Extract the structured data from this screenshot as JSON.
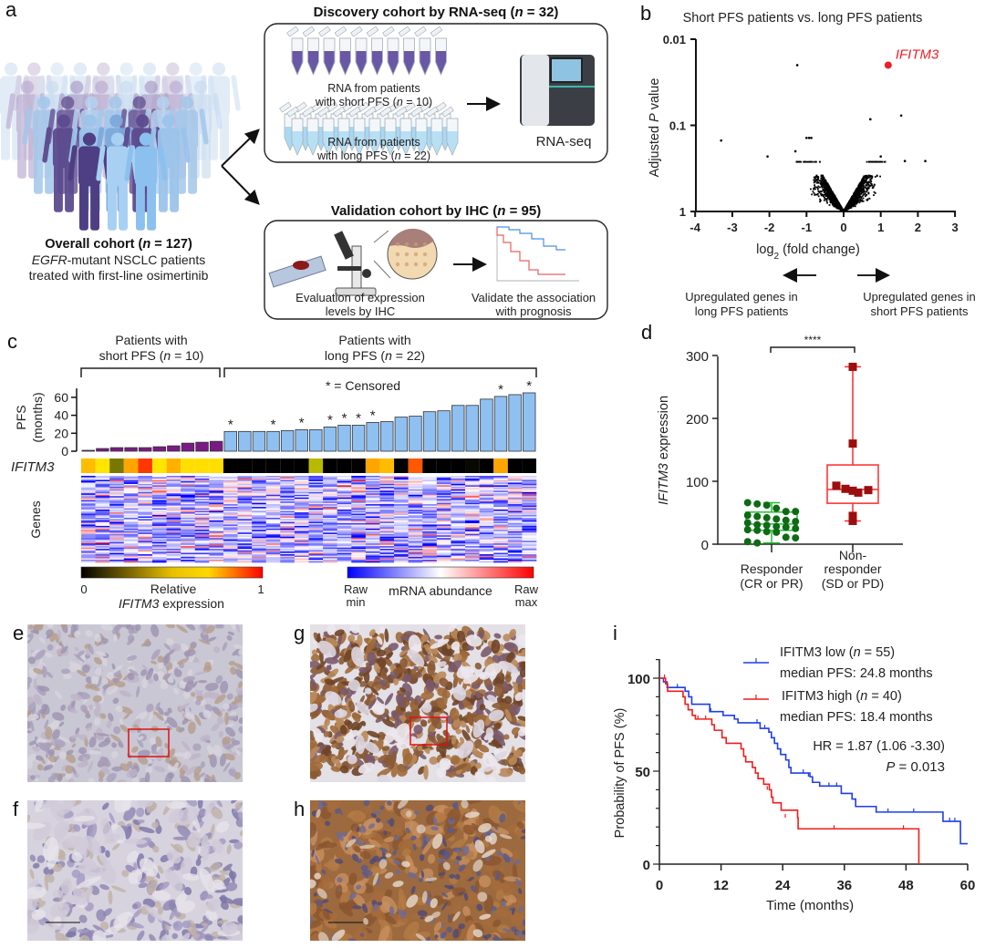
{
  "panel_labels": {
    "a": "a",
    "b": "b",
    "c": "c",
    "d": "d",
    "e": "e",
    "f": "f",
    "g": "g",
    "h": "h",
    "i": "i"
  },
  "colors": {
    "purple": "#7b1a86",
    "bar_blue": "#8fc0f2",
    "red": "#e8202a",
    "blue": "#1f3ee0",
    "green": "#1a9a2a",
    "dark_green": "#0e6a14",
    "dark_red": "#9c0e0e"
  },
  "a": {
    "discovery_title": [
      "Discovery cohort by RNA-seq (",
      "n",
      " = 32)"
    ],
    "short_line1": "RNA from patients",
    "short_line2": [
      "with short PFS (",
      "n",
      " = 10)"
    ],
    "long_line1": "RNA from patients",
    "long_line2": [
      "with long PFS (",
      "n",
      " = 22)"
    ],
    "rnaseq": "RNA-seq",
    "validation_title": [
      "Validation cohort by IHC (",
      "n",
      " = 95)"
    ],
    "eval_line1": "Evaluation of expression",
    "eval_line2": "levels by IHC",
    "validate_line1": "Validate the association",
    "validate_line2": "with prognosis",
    "overall_title": [
      "Overall cohort (",
      "n",
      " = 127)"
    ],
    "overall_line2": [
      "EGFR",
      "-mutant NSCLC patients"
    ],
    "overall_line3": "treated with first-line osimertinib"
  },
  "b": {
    "left_note_1": "Upregulated genes in",
    "left_note_2": "long PFS patients",
    "right_note_1": "Upregulated genes in",
    "right_note_2": "short PFS patients"
  },
  "c": {
    "short_group": [
      "Patients with",
      "short PFS (",
      "n",
      " = 10)"
    ],
    "long_group": [
      "Patients with",
      "long PFS (",
      "n",
      " = 22)"
    ],
    "censored_note": "* = Censored",
    "ylabel_1": "PFS",
    "ylabel_2": "(months)",
    "yticks": [
      "0",
      "20",
      "40",
      "60"
    ],
    "ifitm3_label": "IFITM3",
    "genes_label": "Genes",
    "left_bar_min": "0",
    "left_bar_max": "1",
    "left_bar_title1": "Relative",
    "left_bar_title2": [
      "IFITM3",
      " expression"
    ],
    "right_bar_min": [
      "Raw",
      "min"
    ],
    "right_bar_max": [
      "Raw",
      "max"
    ],
    "right_bar_title": "mRNA abundance",
    "star": "*"
  },
  "i": {
    "legend_low": [
      "IFITM3 low (",
      "n",
      " = 55)"
    ],
    "legend_low_median": "median PFS: 24.8 months",
    "legend_high": [
      "IFITM3 high (",
      "n",
      " = 40)"
    ],
    "legend_high_median": "median PFS: 18.4 months",
    "hr": "HR = 1.87 (1.06 -3.30)",
    "p": [
      "P",
      " = 0.013"
    ]
  },
  "chart_data": [
    {
      "id": "b",
      "type": "scatter",
      "title": "Short PFS patients vs. long PFS patients",
      "xlabel": [
        "log",
        "2",
        " (fold change)"
      ],
      "ylabel": [
        "Adjusted ",
        "P",
        " value"
      ],
      "xlim": [
        -4,
        3
      ],
      "ylim_log": [
        1,
        0.01
      ],
      "xticks": [
        "-4",
        "-3",
        "-2",
        "-1",
        "0",
        "1",
        "2",
        "3"
      ],
      "yticks": [
        "0.01",
        "0.1",
        "1"
      ],
      "highlight": {
        "label": "IFITM3",
        "x": 1.2,
        "p": 0.02
      },
      "outliers": [
        [
          -1.25,
          0.02
        ],
        [
          0.72,
          0.085
        ],
        [
          1.55,
          0.077
        ],
        [
          -3.3,
          0.15
        ],
        [
          -0.93,
          0.14
        ],
        [
          -1.0,
          0.14
        ],
        [
          -0.87,
          0.14
        ],
        [
          -1.3,
          0.2
        ],
        [
          -2.05,
          0.23
        ],
        [
          1.0,
          0.23
        ],
        [
          2.2,
          0.26
        ],
        [
          1.65,
          0.26
        ]
      ]
    },
    {
      "id": "c",
      "type": "bar",
      "ylabel": "PFS (months)",
      "ylim": [
        0,
        70
      ],
      "values": [
        1,
        3,
        4,
        4,
        4,
        5,
        6,
        9,
        10,
        11,
        22,
        22,
        22,
        22,
        23,
        24,
        24,
        27,
        29,
        29,
        32,
        33,
        38,
        39,
        44,
        45,
        51,
        51,
        58,
        61,
        63,
        65
      ],
      "groups": [
        "short",
        "short",
        "short",
        "short",
        "short",
        "short",
        "short",
        "short",
        "short",
        "short",
        "long",
        "long",
        "long",
        "long",
        "long",
        "long",
        "long",
        "long",
        "long",
        "long",
        "long",
        "long",
        "long",
        "long",
        "long",
        "long",
        "long",
        "long",
        "long",
        "long",
        "long",
        "long"
      ],
      "censored": [
        false,
        false,
        false,
        false,
        false,
        false,
        false,
        false,
        false,
        false,
        true,
        false,
        false,
        true,
        false,
        true,
        false,
        true,
        true,
        true,
        true,
        false,
        false,
        false,
        false,
        false,
        false,
        false,
        false,
        true,
        false,
        true
      ],
      "ifitm3_relative": [
        0.75,
        0.6,
        0.3,
        0.85,
        0.95,
        0.6,
        0.8,
        0.62,
        0.62,
        0.62,
        0,
        0,
        0,
        0,
        0,
        0,
        0.35,
        0,
        0,
        0,
        0.85,
        0.75,
        0,
        0.92,
        0,
        0,
        0,
        0.02,
        0,
        0.85,
        0,
        0
      ]
    },
    {
      "id": "d",
      "type": "box",
      "ylabel": [
        "IFITM3",
        " expression"
      ],
      "ylim": [
        0,
        300
      ],
      "yticks": [
        "0",
        "100",
        "200",
        "300"
      ],
      "significance": "****",
      "categories": [
        [
          "Responder",
          "(CR or PR)"
        ],
        [
          "Non-",
          "responder",
          "(SD or PD)"
        ]
      ],
      "responder": {
        "min": 2,
        "q1": 22,
        "median": 32,
        "q3": 51,
        "max": 66,
        "points": [
          66,
          64,
          62,
          57,
          52,
          52,
          46,
          44,
          42,
          40,
          38,
          36,
          34,
          31,
          30,
          28,
          27,
          25,
          23,
          22,
          20,
          19,
          11,
          10,
          4,
          2
        ]
      },
      "non_responder": {
        "min": 37,
        "q1": 65,
        "median": 87,
        "q3": 126,
        "max": 282,
        "points": [
          282,
          160,
          93,
          88,
          86,
          85,
          82,
          45,
          37
        ]
      }
    },
    {
      "id": "i",
      "type": "line",
      "xlabel": "Time (months)",
      "ylabel": "Probability of PFS (%)",
      "xlim": [
        0,
        60
      ],
      "ylim": [
        0,
        100
      ],
      "xticks": [
        "0",
        "12",
        "24",
        "36",
        "48",
        "60"
      ],
      "yticks": [
        "0",
        "50",
        "100"
      ],
      "series": [
        {
          "name": "IFITM3 low",
          "steps": [
            [
              0,
              100
            ],
            [
              0.8,
              98
            ],
            [
              1.5,
              95
            ],
            [
              5,
              93
            ],
            [
              5.7,
              90
            ],
            [
              6.3,
              86
            ],
            [
              9.8,
              82
            ],
            [
              12.4,
              80
            ],
            [
              14.6,
              78
            ],
            [
              15.3,
              76
            ],
            [
              19.6,
              73
            ],
            [
              21.3,
              71
            ],
            [
              21.8,
              68
            ],
            [
              22.4,
              65
            ],
            [
              23,
              62
            ],
            [
              23.6,
              59
            ],
            [
              24.6,
              56
            ],
            [
              25.2,
              52
            ],
            [
              25.6,
              49
            ],
            [
              29.3,
              47
            ],
            [
              29.8,
              44
            ],
            [
              31.2,
              42
            ],
            [
              35.4,
              38
            ],
            [
              37.5,
              35
            ],
            [
              38.2,
              31
            ],
            [
              42.2,
              28
            ],
            [
              55.2,
              23
            ],
            [
              58.6,
              11
            ],
            [
              60,
              11
            ]
          ],
          "censored": [
            [
              3.5,
              95
            ],
            [
              10,
              82
            ],
            [
              19,
              76
            ],
            [
              20.5,
              73
            ],
            [
              28,
              49
            ],
            [
              29,
              47
            ],
            [
              33,
              42
            ],
            [
              34.5,
              42
            ],
            [
              44.5,
              28
            ],
            [
              49.5,
              28
            ],
            [
              56.5,
              23
            ],
            [
              57.5,
              23
            ]
          ]
        },
        {
          "name": "IFITM3 high",
          "steps": [
            [
              0,
              100
            ],
            [
              1.2,
              97
            ],
            [
              1.6,
              93
            ],
            [
              4.6,
              90
            ],
            [
              5,
              86
            ],
            [
              5.6,
              83
            ],
            [
              6.4,
              80
            ],
            [
              7,
              78
            ],
            [
              10.2,
              75
            ],
            [
              10.7,
              72
            ],
            [
              12.2,
              68
            ],
            [
              13,
              65
            ],
            [
              15.9,
              62
            ],
            [
              16.4,
              58
            ],
            [
              16.8,
              55
            ],
            [
              18.1,
              52
            ],
            [
              18.7,
              49
            ],
            [
              19.2,
              46
            ],
            [
              20.3,
              43
            ],
            [
              21.4,
              40
            ],
            [
              21.8,
              36
            ],
            [
              22.1,
              33
            ],
            [
              23.7,
              29
            ],
            [
              26.9,
              25
            ],
            [
              27,
              19
            ],
            [
              50.5,
              0
            ]
          ],
          "censored": [
            [
              1,
              100
            ],
            [
              7.5,
              78
            ],
            [
              9,
              78
            ],
            [
              21,
              40
            ],
            [
              24.5,
              25
            ],
            [
              34,
              19
            ],
            [
              47.5,
              19
            ]
          ]
        }
      ]
    }
  ]
}
